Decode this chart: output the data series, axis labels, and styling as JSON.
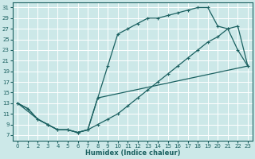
{
  "xlabel": "Humidex (Indice chaleur)",
  "bg_color": "#cce8e8",
  "line_color": "#1a6060",
  "grid_color": "#b0d0d0",
  "xlim": [
    -0.5,
    23.5
  ],
  "ylim": [
    6,
    32
  ],
  "xticks": [
    0,
    1,
    2,
    3,
    4,
    5,
    6,
    7,
    8,
    9,
    10,
    11,
    12,
    13,
    14,
    15,
    16,
    17,
    18,
    19,
    20,
    21,
    22,
    23
  ],
  "yticks": [
    7,
    9,
    11,
    13,
    15,
    17,
    19,
    21,
    23,
    25,
    27,
    29,
    31
  ],
  "line1_x": [
    0,
    1,
    2,
    3,
    4,
    5,
    6,
    7,
    8,
    9,
    10,
    11,
    12,
    13,
    14,
    15,
    16,
    17,
    18,
    19,
    20,
    21,
    22,
    23
  ],
  "line1_y": [
    13,
    12,
    10,
    9,
    8,
    8,
    7.5,
    8,
    14,
    20,
    26,
    27,
    28,
    29,
    29,
    29.5,
    30,
    30.5,
    31,
    31,
    27.5,
    27,
    23,
    20
  ],
  "line2_x": [
    0,
    1,
    2,
    3,
    4,
    5,
    6,
    7,
    8,
    23
  ],
  "line2_y": [
    13,
    12,
    10,
    9,
    8,
    8,
    7.5,
    8,
    14,
    20
  ],
  "line3_x": [
    0,
    2,
    3,
    4,
    5,
    6,
    7,
    8,
    9,
    10,
    11,
    12,
    13,
    14,
    15,
    16,
    17,
    18,
    19,
    20,
    21,
    22,
    23
  ],
  "line3_y": [
    13,
    10,
    9,
    8,
    8,
    7.5,
    8,
    9,
    10,
    11,
    12.5,
    14,
    15.5,
    17,
    18.5,
    20,
    21.5,
    23,
    24.5,
    25.5,
    27,
    27.5,
    20
  ]
}
